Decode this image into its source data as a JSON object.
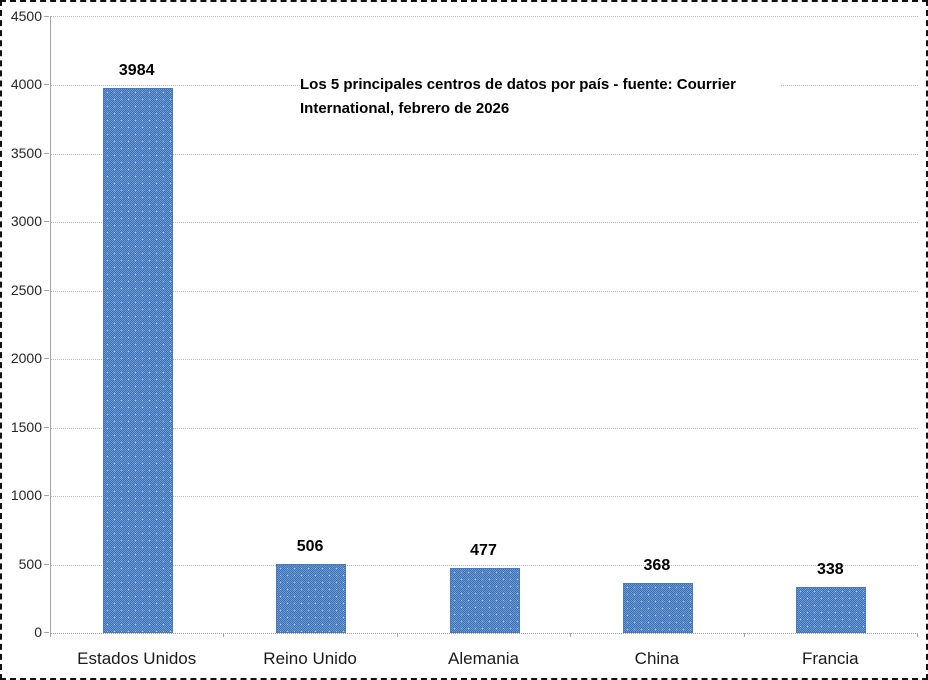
{
  "chart_data": {
    "type": "bar",
    "title": "Los 5 principales centros de datos por país - fuente: Courrier\nInternational, febrero de 2026",
    "categories": [
      "Estados Unidos",
      "Reino Unido",
      "Alemania",
      "China",
      "Francia"
    ],
    "values": [
      3984,
      506,
      477,
      368,
      338
    ],
    "value_labels": [
      "3984",
      "506",
      "477",
      "368",
      "338"
    ],
    "xlabel": "",
    "ylabel": "",
    "ylim": [
      0,
      4500
    ],
    "yticks": [
      0,
      500,
      1000,
      1500,
      2000,
      2500,
      3000,
      3500,
      4000,
      4500
    ],
    "grid": "horizontal-dotted",
    "legend": "none",
    "colors": {
      "bar_dark": "#3c70b4",
      "bar_light": "#6f9bd4",
      "bar_border": "#4a7abc",
      "gridline": "#b8b8b8",
      "axis": "#a6a6a6",
      "text": "#000000",
      "background": "#ffffff",
      "frame_border": "#111111"
    }
  }
}
